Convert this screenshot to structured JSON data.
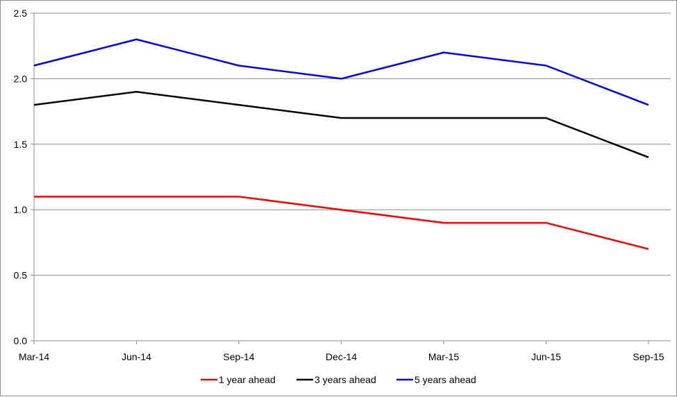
{
  "chart_data": {
    "type": "line",
    "categories": [
      "Mar-14",
      "Jun-14",
      "Sep-14",
      "Dec-14",
      "Mar-15",
      "Jun-15",
      "Sep-15"
    ],
    "series": [
      {
        "name": "1 year ahead",
        "color": "#ff0000",
        "values": [
          1.1,
          1.1,
          1.1,
          1.0,
          0.9,
          0.9,
          0.7
        ]
      },
      {
        "name": "3 years ahead",
        "color": "#000000",
        "values": [
          1.8,
          1.9,
          1.8,
          1.7,
          1.7,
          1.7,
          1.4
        ]
      },
      {
        "name": "5 years ahead",
        "color": "#0000ff",
        "values": [
          2.1,
          2.3,
          2.1,
          2.0,
          2.2,
          2.1,
          1.8
        ]
      }
    ],
    "y_ticks": [
      "0.0",
      "0.5",
      "1.0",
      "1.5",
      "2.0",
      "2.5"
    ],
    "ylim": [
      0,
      2.5
    ],
    "grid": true,
    "legend_position": "bottom-center",
    "title": "",
    "xlabel": "",
    "ylabel": ""
  }
}
